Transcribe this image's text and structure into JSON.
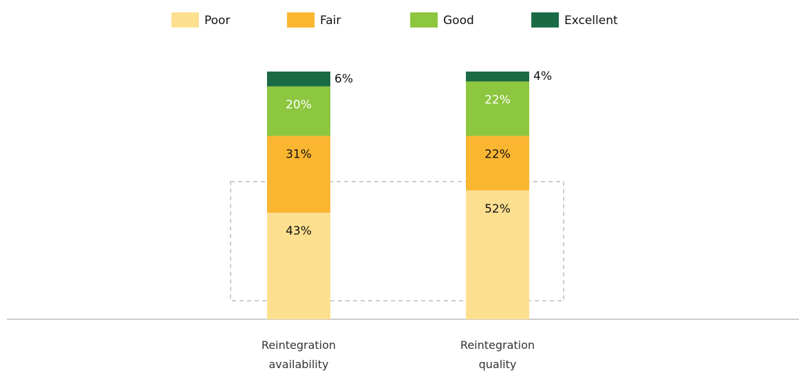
{
  "chart_data": {
    "type": "stacked_bar",
    "categories": [
      "Reintegration availability",
      "Reintegration quality"
    ],
    "series": [
      {
        "name": "Poor",
        "color": "#fde08f",
        "values": [
          43,
          52
        ],
        "value_labels": [
          "43%",
          "52%"
        ]
      },
      {
        "name": "Fair",
        "color": "#fbb631",
        "values": [
          31,
          22
        ],
        "value_labels": [
          "31%",
          "22%"
        ]
      },
      {
        "name": "Good",
        "color": "#8dc63f",
        "values": [
          20,
          22
        ],
        "value_labels": [
          "20%",
          "22%"
        ]
      },
      {
        "name": "Excellent",
        "color": "#1a6b45",
        "values": [
          6,
          4
        ],
        "value_labels": [
          "6%",
          "4%"
        ]
      }
    ]
  }
}
